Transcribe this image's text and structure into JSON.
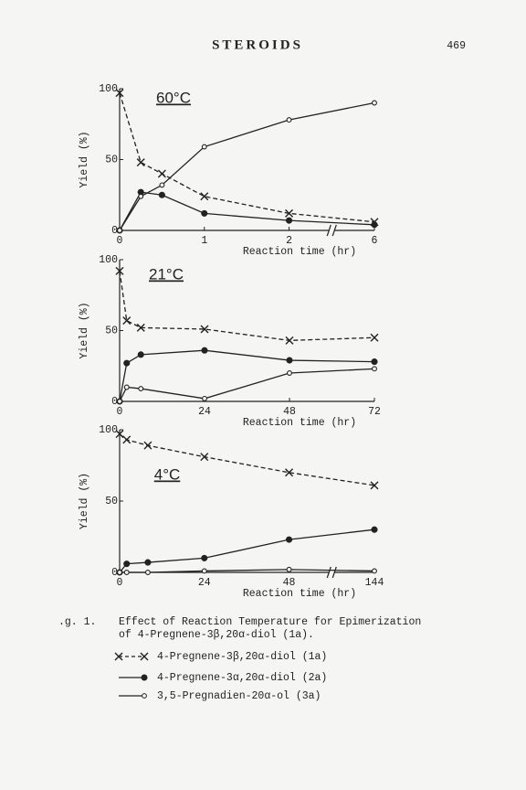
{
  "header": {
    "journal": "STEROIDS",
    "page": "469"
  },
  "chart_data": [
    {
      "type": "line",
      "title": "60°C",
      "xlabel": "Reaction time (hr)",
      "ylabel": "Yield (%)",
      "x": [
        0,
        0.25,
        0.5,
        1,
        2,
        6
      ],
      "xlim": [
        0,
        6
      ],
      "xticks": [
        0,
        1,
        2,
        6
      ],
      "xbreak": [
        2,
        6
      ],
      "ylim": [
        0,
        100
      ],
      "yticks": [
        0,
        50,
        100
      ],
      "series": [
        {
          "name": "4-Pregnene-3β,20α-diol (1a)",
          "marker": "x",
          "dashed": true,
          "color": "#222",
          "values": [
            97,
            48,
            40,
            24,
            12,
            6
          ]
        },
        {
          "name": "4-Pregnene-3α,20α-diol (2a)",
          "marker": "filled",
          "dashed": false,
          "color": "#222",
          "values": [
            0,
            27,
            25,
            12,
            7,
            4
          ]
        },
        {
          "name": "3,5-Pregnadien-20α-ol (3a)",
          "marker": "open",
          "dashed": false,
          "color": "#222",
          "values": [
            0,
            24,
            32,
            59,
            78,
            90
          ]
        }
      ]
    },
    {
      "type": "line",
      "title": "21°C",
      "xlabel": "Reaction time (hr)",
      "ylabel": "Yield (%)",
      "x": [
        0,
        2,
        6,
        24,
        48,
        72
      ],
      "xlim": [
        0,
        72
      ],
      "xticks": [
        0,
        24,
        48,
        72
      ],
      "ylim": [
        0,
        100
      ],
      "yticks": [
        0,
        50,
        100
      ],
      "series": [
        {
          "marker": "x",
          "dashed": true,
          "color": "#222",
          "values": [
            92,
            57,
            52,
            51,
            43,
            45
          ]
        },
        {
          "marker": "filled",
          "dashed": false,
          "color": "#222",
          "values": [
            0,
            27,
            33,
            36,
            29,
            28
          ]
        },
        {
          "marker": "open",
          "dashed": false,
          "color": "#222",
          "values": [
            0,
            10,
            9,
            2,
            20,
            23
          ]
        }
      ]
    },
    {
      "type": "line",
      "title": "4°C",
      "xlabel": "Reaction time (hr)",
      "ylabel": "Yield (%)",
      "x": [
        0,
        2,
        8,
        24,
        48,
        144
      ],
      "xlim": [
        0,
        144
      ],
      "xticks": [
        0,
        24,
        48,
        144
      ],
      "xbreak": [
        48,
        144
      ],
      "ylim": [
        0,
        100
      ],
      "yticks": [
        0,
        50,
        100
      ],
      "series": [
        {
          "marker": "x",
          "dashed": true,
          "color": "#222",
          "values": [
            97,
            93,
            89,
            81,
            70,
            61
          ]
        },
        {
          "marker": "filled",
          "dashed": false,
          "color": "#222",
          "values": [
            0,
            6,
            7,
            10,
            23,
            30
          ]
        },
        {
          "marker": "open",
          "dashed": false,
          "color": "#222",
          "values": [
            0,
            0,
            0,
            1,
            2,
            1
          ]
        }
      ]
    }
  ],
  "caption": {
    "label": ".g. 1.",
    "lines": [
      "Effect of Reaction Temperature for Epimerization",
      "of 4-Pregnene-3β,20α-diol (1a)."
    ]
  }
}
